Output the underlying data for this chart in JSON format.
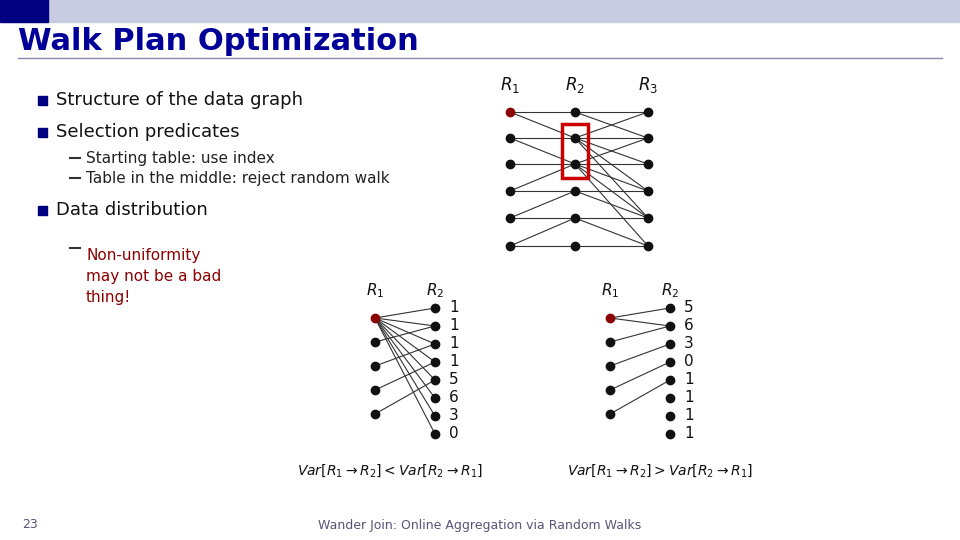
{
  "title": "Walk Plan Optimization",
  "header_bg": "#c8cce0",
  "header_dark": "#000080",
  "title_color": "#000099",
  "slide_bg": "#ffffff",
  "bullet_color": "#000080",
  "bullet_items": [
    "Structure of the data graph",
    "Selection predicates"
  ],
  "sub_bullets": [
    "Starting table: use index",
    "Table in the middle: reject random walk"
  ],
  "bullet3": "Data distribution",
  "sub_bullet3_color": "#8B0000",
  "footer_text": "Wander Join: Online Aggregation via Random Walks",
  "page_num": "23",
  "graph_dot_color": "#111111",
  "graph_red_dot": "#8B0000",
  "rect_color": "#cc0000",
  "left_graph_values_R2": [
    "1",
    "1",
    "1",
    "1",
    "5",
    "6",
    "3",
    "0"
  ],
  "right_graph_values_R2": [
    "5",
    "6",
    "3",
    "0",
    "1",
    "1",
    "1",
    "1"
  ]
}
